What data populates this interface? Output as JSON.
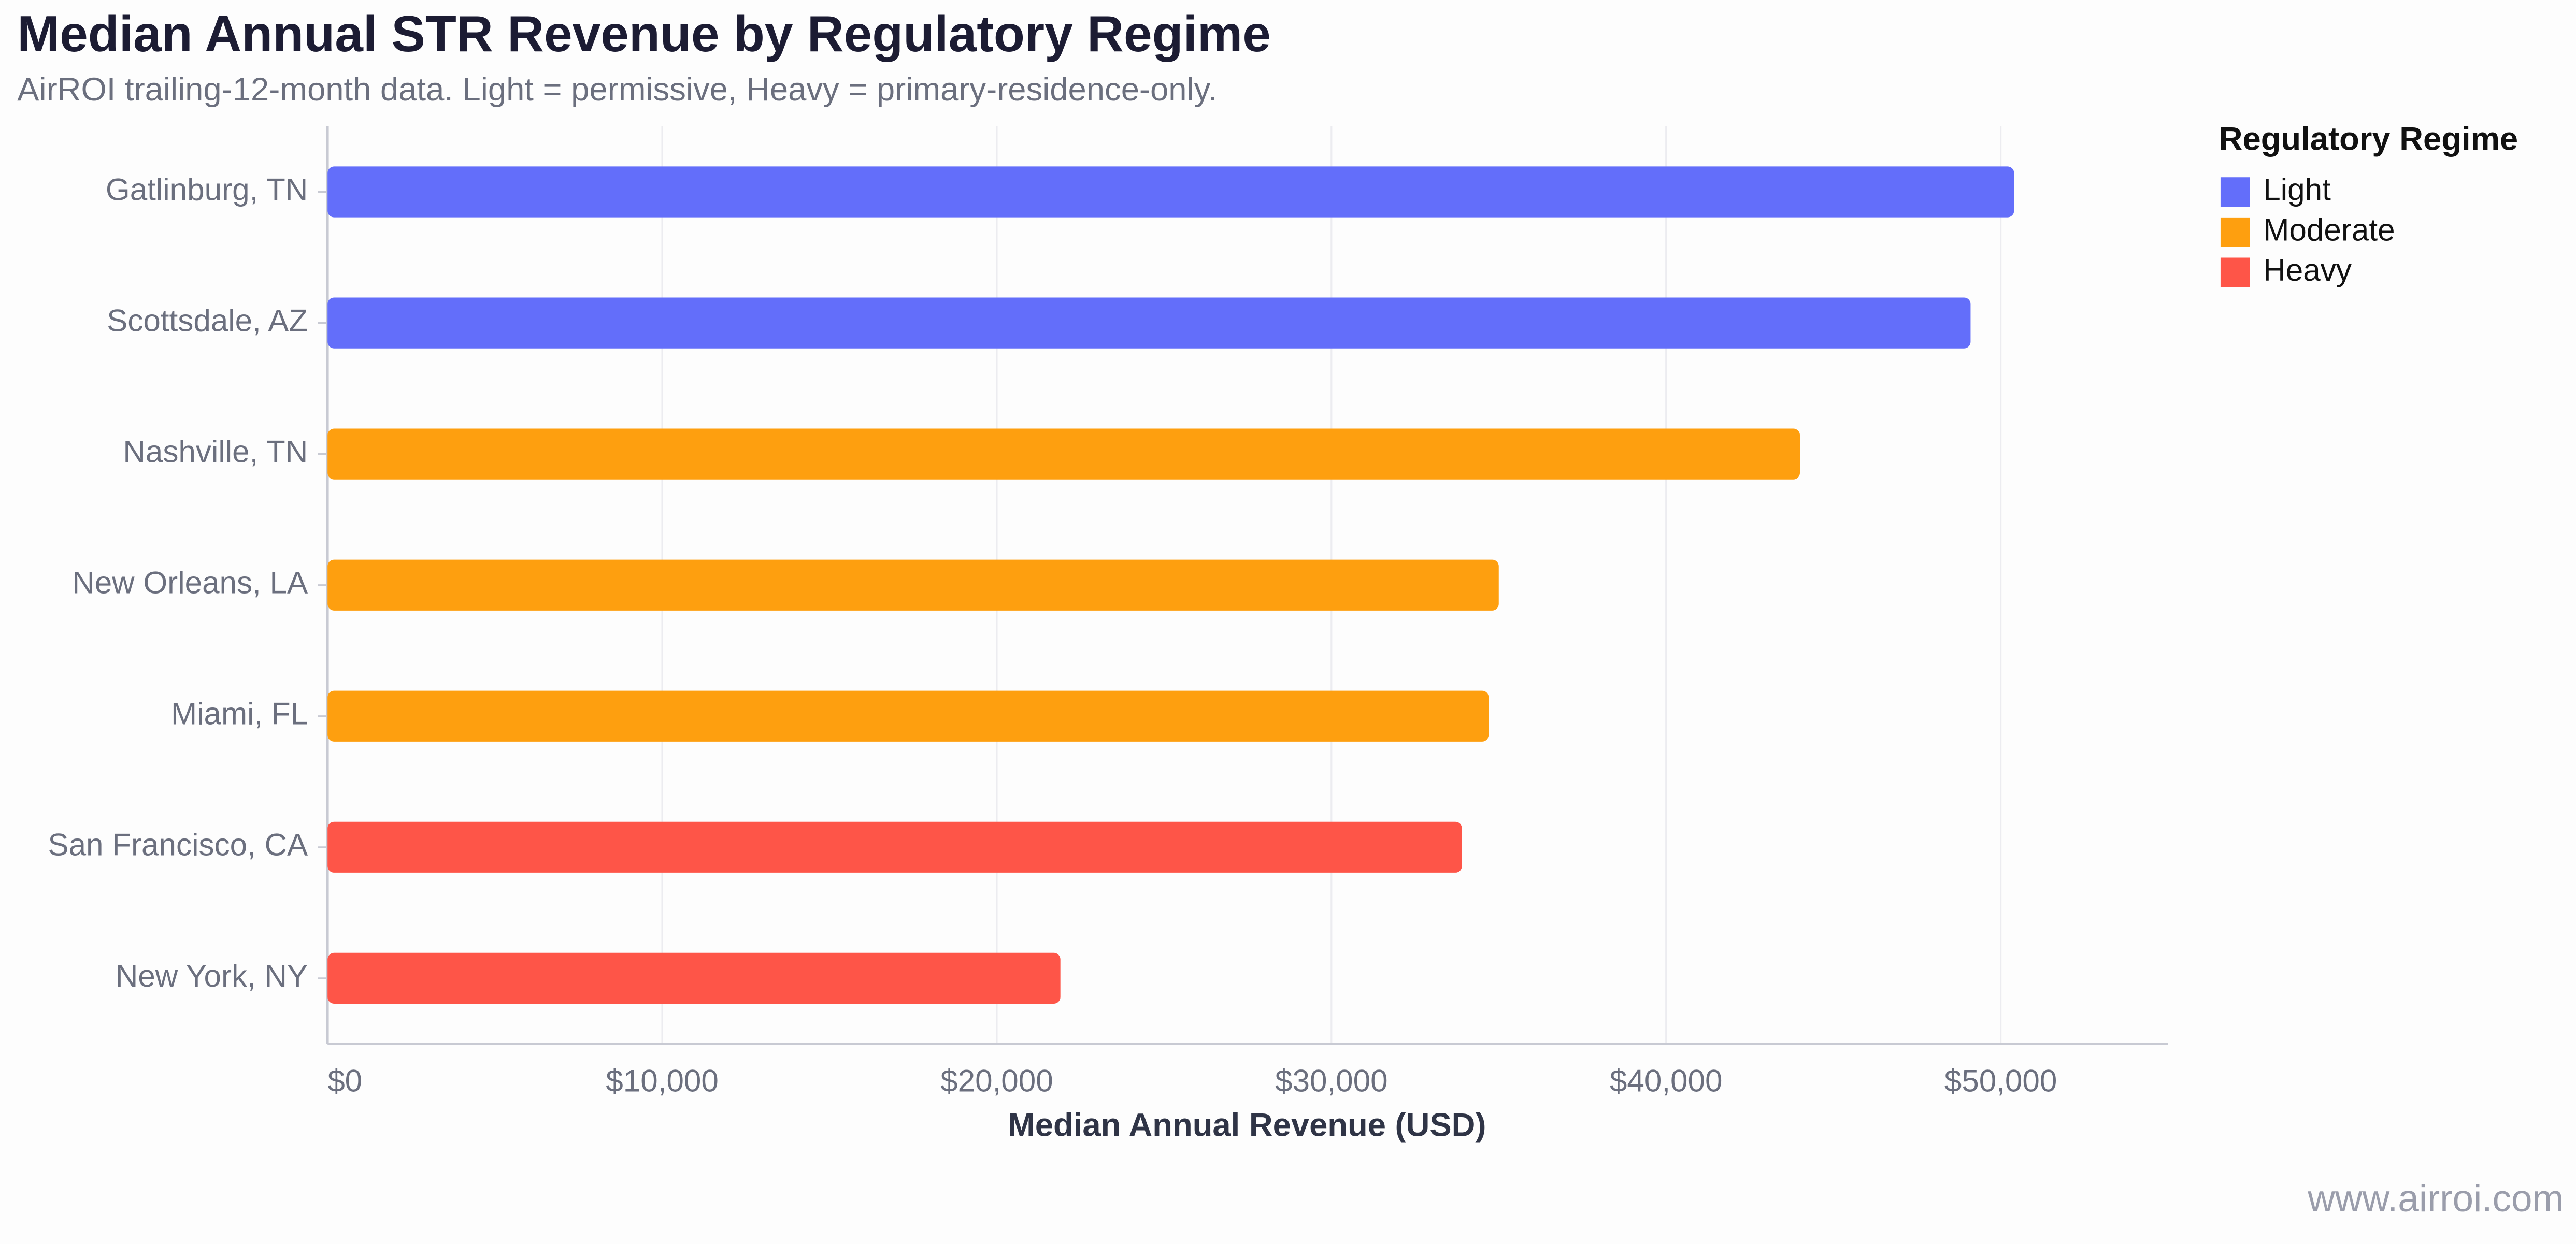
{
  "chart_data": {
    "type": "bar",
    "orientation": "horizontal",
    "title": "Median Annual STR Revenue by Regulatory Regime",
    "subtitle": "AirROI trailing-12-month data. Light = permissive, Heavy = primary-residence-only.",
    "x_label": "Median Annual Revenue (USD)",
    "legend_title": "Regulatory Regime",
    "legend_position": "right",
    "watermark": "www.airroi.com",
    "categories": [
      "Gatlinburg, TN",
      "Scottsdale, AZ",
      "Nashville, TN",
      "New Orleans, LA",
      "Miami, FL",
      "San Francisco, CA",
      "New York, NY"
    ],
    "series": [
      {
        "name": "Light",
        "color": "#636efa",
        "values": [
          50400,
          49100,
          null,
          null,
          null,
          null,
          null
        ]
      },
      {
        "name": "Moderate",
        "color": "#fe9f0f",
        "values": [
          null,
          null,
          44000,
          35000,
          34700,
          null,
          null
        ]
      },
      {
        "name": "Heavy",
        "color": "#fe5548",
        "values": [
          null,
          null,
          null,
          null,
          null,
          33900,
          21900
        ]
      }
    ],
    "xlim": [
      0,
      55000
    ],
    "xticks": [
      {
        "value": 0,
        "label": "$0"
      },
      {
        "value": 10000,
        "label": "$10,000"
      },
      {
        "value": 20000,
        "label": "$20,000"
      },
      {
        "value": 30000,
        "label": "$30,000"
      },
      {
        "value": 40000,
        "label": "$40,000"
      },
      {
        "value": 50000,
        "label": "$50,000"
      }
    ],
    "grid": true
  }
}
